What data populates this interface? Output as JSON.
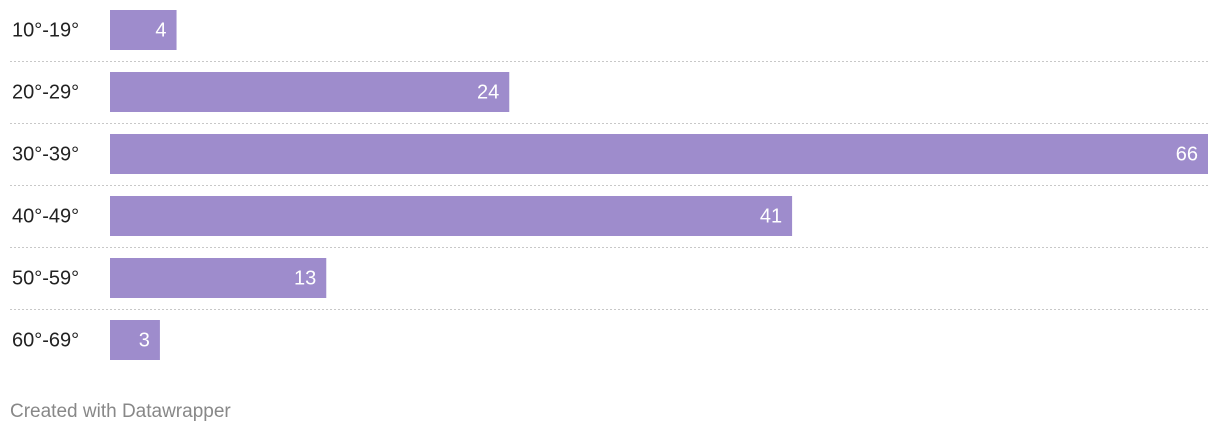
{
  "chart_data": {
    "type": "bar",
    "orientation": "horizontal",
    "categories": [
      "10°-19°",
      "20°-29°",
      "30°-39°",
      "40°-49°",
      "50°-59°",
      "60°-69°"
    ],
    "values": [
      4,
      24,
      66,
      41,
      13,
      3
    ],
    "color": "#9e8ccc",
    "credit": "Created with Datawrapper"
  }
}
